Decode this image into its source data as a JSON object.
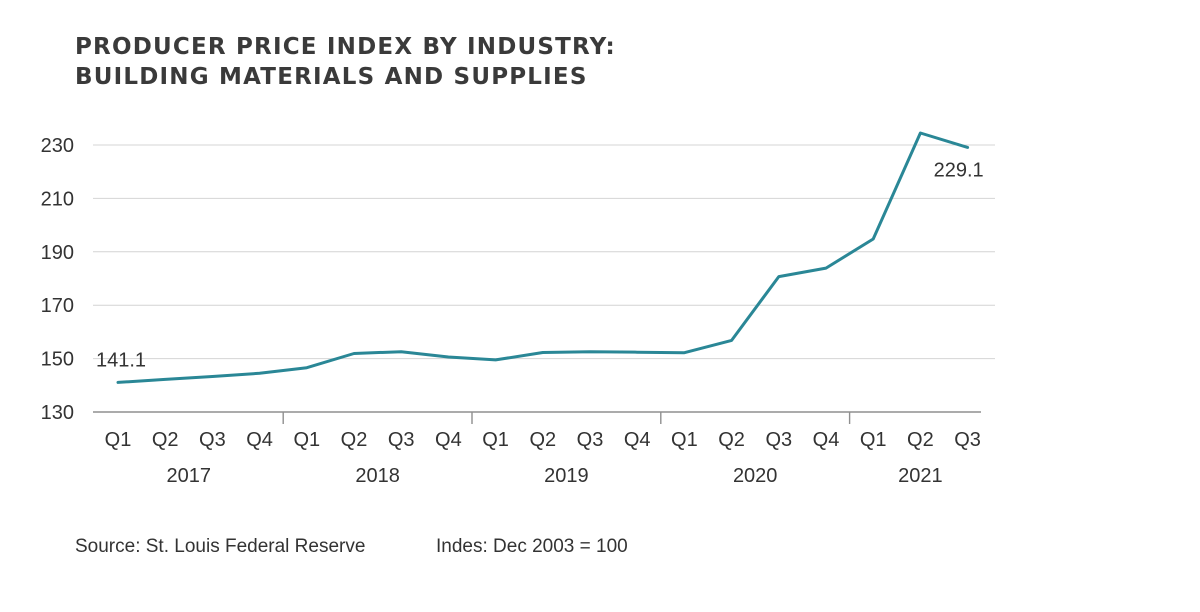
{
  "title_lines": [
    "PRODUCER PRICE INDEX BY INDUSTRY:",
    "BUILDING MATERIALS AND SUPPLIES"
  ],
  "footer": {
    "source": "Source: St. Louis Federal Reserve",
    "index_note": "Indes: Dec 2003 = 100"
  },
  "chart_data": {
    "type": "line",
    "title": "PRODUCER PRICE INDEX BY INDUSTRY: BUILDING MATERIALS AND SUPPLIES",
    "xlabel": "",
    "ylabel": "",
    "ylim": [
      130,
      235
    ],
    "yticks": [
      130,
      150,
      170,
      190,
      210,
      230
    ],
    "grid": true,
    "legend": "none",
    "color": "#2a8796",
    "x": [
      "Q1 2017",
      "Q2 2017",
      "Q3 2017",
      "Q4 2017",
      "Q1 2018",
      "Q2 2018",
      "Q3 2018",
      "Q4 2018",
      "Q1 2019",
      "Q2 2019",
      "Q3 2019",
      "Q4 2019",
      "Q1 2020",
      "Q2 2020",
      "Q3 2020",
      "Q4 2020",
      "Q1 2021",
      "Q2 2021",
      "Q3 2021"
    ],
    "quarter_labels": [
      "Q1",
      "Q2",
      "Q3",
      "Q4",
      "Q1",
      "Q2",
      "Q3",
      "Q4",
      "Q1",
      "Q2",
      "Q3",
      "Q4",
      "Q1",
      "Q2",
      "Q3",
      "Q4",
      "Q1",
      "Q2",
      "Q3"
    ],
    "years": [
      {
        "label": "2017",
        "start": 0,
        "count": 4
      },
      {
        "label": "2018",
        "start": 4,
        "count": 4
      },
      {
        "label": "2019",
        "start": 8,
        "count": 4
      },
      {
        "label": "2020",
        "start": 12,
        "count": 4
      },
      {
        "label": "2021",
        "start": 16,
        "count": 3
      }
    ],
    "series": [
      {
        "values": [
          141.1,
          142.2,
          143.3,
          144.5,
          146.6,
          151.9,
          152.6,
          150.6,
          149.5,
          152.3,
          152.6,
          152.4,
          152.2,
          156.8,
          180.7,
          183.9,
          194.8,
          234.5,
          229.1
        ]
      }
    ],
    "annotations": [
      {
        "text": "141.1",
        "index": 0
      },
      {
        "text": "229.1",
        "index": 18
      }
    ]
  }
}
